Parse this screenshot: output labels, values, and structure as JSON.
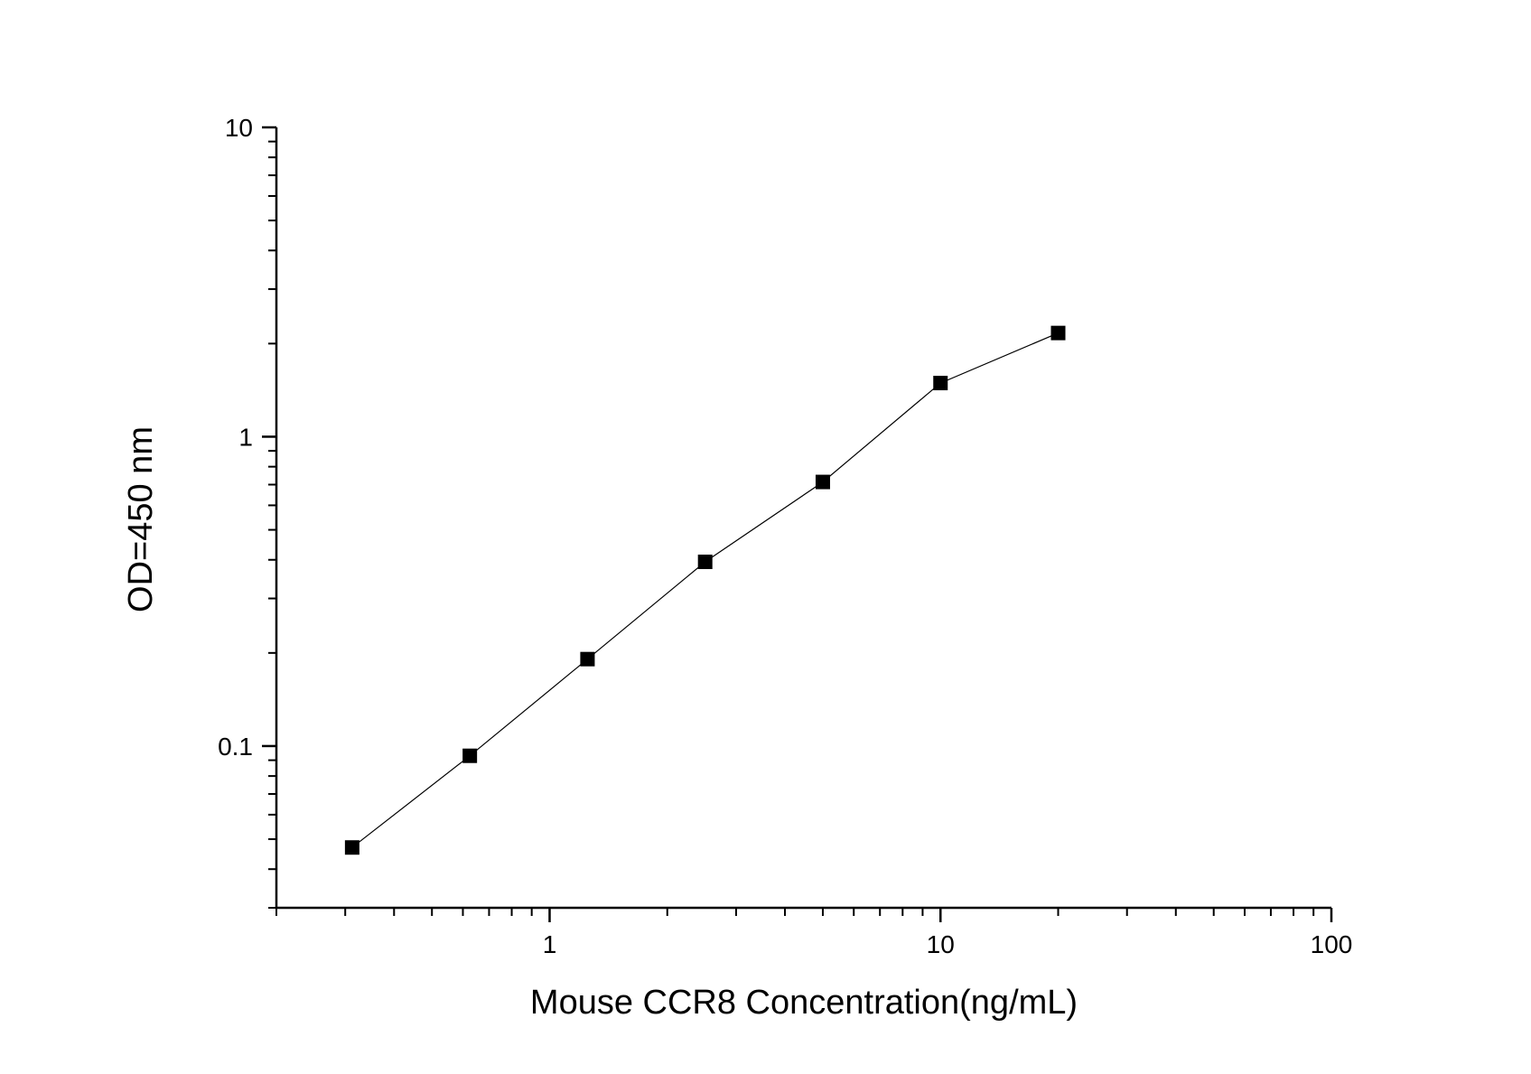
{
  "chart_data": {
    "type": "scatter",
    "title": "",
    "xlabel": "Mouse CCR8 Concentration(ng/mL)",
    "ylabel": "OD=450 nm",
    "x_scale": "log",
    "y_scale": "log",
    "xlim": [
      0.2,
      100
    ],
    "ylim": [
      0.03,
      10
    ],
    "x_ticks": [
      {
        "value": 1,
        "label": "1"
      },
      {
        "value": 10,
        "label": "10"
      },
      {
        "value": 100,
        "label": "100"
      }
    ],
    "y_ticks": [
      {
        "value": 0.1,
        "label": "0.1"
      },
      {
        "value": 1,
        "label": "1"
      },
      {
        "value": 10,
        "label": "10"
      }
    ],
    "grid": false,
    "legend": false,
    "connected": true,
    "marker": "square",
    "color": "#000000",
    "series": [
      {
        "x": [
          0.3125,
          0.625,
          1.25,
          2.5,
          5,
          10,
          20
        ],
        "y": [
          0.047,
          0.093,
          0.191,
          0.394,
          0.714,
          1.491,
          2.164
        ]
      }
    ]
  }
}
